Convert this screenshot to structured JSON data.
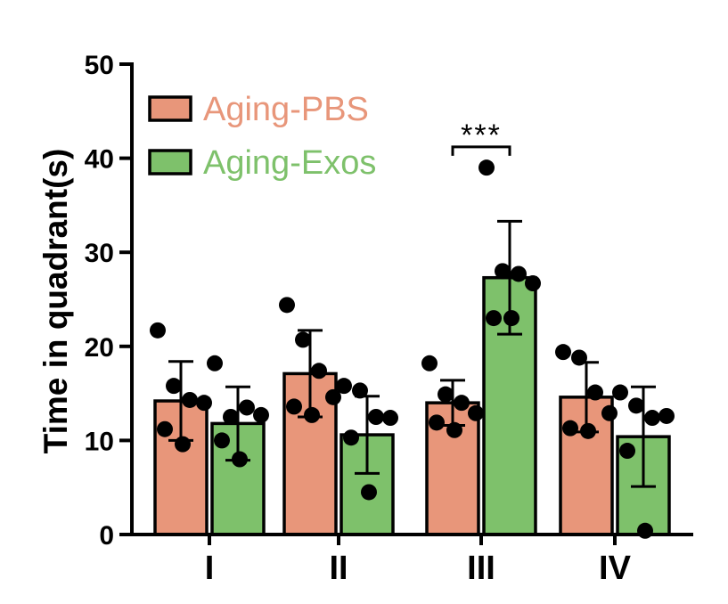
{
  "chart_data": {
    "type": "bar",
    "title": "",
    "xlabel": "",
    "ylabel": "Time in quadrant(s)",
    "ylim": [
      0,
      50
    ],
    "yticks": [
      0,
      10,
      20,
      30,
      40,
      50
    ],
    "yticks_text": [
      "0",
      "10",
      "20",
      "30",
      "40",
      "50"
    ],
    "categories": [
      "I",
      "II",
      "III",
      "IV"
    ],
    "legend_position": "top-left",
    "series": [
      {
        "name": "Aging-PBS",
        "color": "#E8967A",
        "values": [
          14.2,
          17.1,
          14.0,
          14.6
        ],
        "sd": [
          4.2,
          4.6,
          2.4,
          3.7
        ],
        "points": [
          [
            21.7,
            15.8,
            14.3,
            14.0,
            11.2,
            9.6
          ],
          [
            24.4,
            20.7,
            17.4,
            14.6,
            13.6,
            12.7
          ],
          [
            18.2,
            14.9,
            14.0,
            12.9,
            11.9,
            11.1
          ],
          [
            19.4,
            18.8,
            15.1,
            12.9,
            11.3,
            11.0
          ]
        ]
      },
      {
        "name": "Aging-Exos",
        "color": "#7EC16B",
        "values": [
          11.8,
          10.6,
          27.3,
          10.4
        ],
        "sd": [
          3.9,
          4.1,
          6.0,
          5.3
        ],
        "points": [
          [
            18.2,
            12.5,
            13.5,
            12.7,
            10.0,
            8.0
          ],
          [
            15.8,
            15.3,
            12.5,
            12.4,
            10.3,
            4.5
          ],
          [
            39.0,
            28.0,
            27.7,
            26.7,
            23.0,
            23.0
          ],
          [
            15.1,
            13.7,
            12.4,
            12.6,
            8.9,
            0.4
          ]
        ]
      }
    ],
    "annotations": [
      {
        "text": "***",
        "category": "III",
        "between": [
          "Aging-PBS",
          "Aging-Exos"
        ],
        "at_value": 41.2
      }
    ]
  }
}
